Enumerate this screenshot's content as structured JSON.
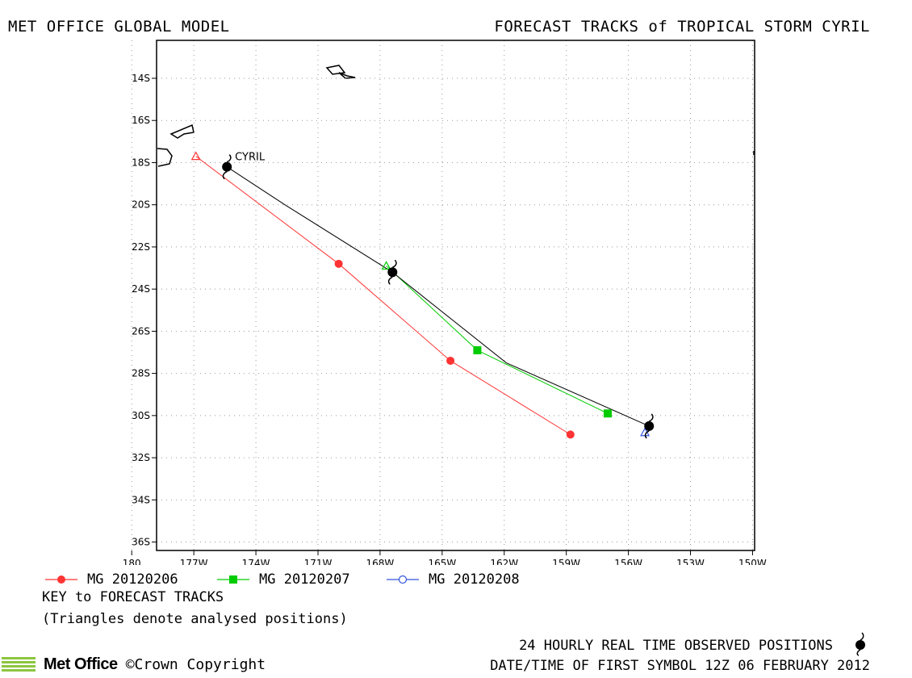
{
  "header": {
    "left": "MET OFFICE GLOBAL MODEL",
    "right": "FORECAST TRACKS of TROPICAL STORM CYRIL"
  },
  "chart_data": {
    "type": "line",
    "title": "FORECAST TRACKS of TROPICAL STORM CYRIL",
    "xlabel": "",
    "ylabel": "",
    "xlim": [
      -178.8,
      -149.9
    ],
    "ylim": [
      -36.4,
      -12.2
    ],
    "x_ticks": [
      {
        "value": -180,
        "label": "180"
      },
      {
        "value": -177,
        "label": "177W"
      },
      {
        "value": -174,
        "label": "174W"
      },
      {
        "value": -171,
        "label": "171W"
      },
      {
        "value": -168,
        "label": "168W"
      },
      {
        "value": -165,
        "label": "165W"
      },
      {
        "value": -162,
        "label": "162W"
      },
      {
        "value": -159,
        "label": "159W"
      },
      {
        "value": -156,
        "label": "156W"
      },
      {
        "value": -153,
        "label": "153W"
      },
      {
        "value": -150,
        "label": "150W"
      }
    ],
    "y_ticks": [
      {
        "value": -14,
        "label": "14S"
      },
      {
        "value": -16,
        "label": "16S"
      },
      {
        "value": -18,
        "label": "18S"
      },
      {
        "value": -20,
        "label": "20S"
      },
      {
        "value": -22,
        "label": "22S"
      },
      {
        "value": -24,
        "label": "24S"
      },
      {
        "value": -26,
        "label": "26S"
      },
      {
        "value": -28,
        "label": "28S"
      },
      {
        "value": -30,
        "label": "30S"
      },
      {
        "value": -32,
        "label": "32S"
      },
      {
        "value": -34,
        "label": "34S"
      },
      {
        "value": -36,
        "label": "36S"
      }
    ],
    "grid": true,
    "storm_label": "CYRIL",
    "series": [
      {
        "name": "MG 20120206",
        "color": "#ff3333",
        "marker": "filled-circle",
        "lon": [
          -176.9,
          -170.0,
          -164.6,
          -158.8
        ],
        "lat": [
          -17.7,
          -22.8,
          -27.4,
          -30.9
        ]
      },
      {
        "name": "MG 20120207",
        "color": "#00cc00",
        "marker": "filled-square",
        "lon": [
          -167.7,
          -163.3,
          -157.0
        ],
        "lat": [
          -22.9,
          -26.9,
          -29.9
        ]
      },
      {
        "name": "MG 20120208",
        "color": "#3355dd",
        "marker": "open-circle",
        "lon": [
          -155.2
        ],
        "lat": [
          -30.8
        ]
      },
      {
        "name": "observed",
        "color": "#000000",
        "marker": "storm-symbol",
        "lon": [
          -175.4,
          -172.6,
          -167.4,
          -161.9,
          -155.0
        ],
        "lat": [
          -18.2,
          -20.0,
          -23.2,
          -27.5,
          -30.5
        ]
      }
    ],
    "analysed_positions": [
      {
        "series": "MG 20120206",
        "lon": -176.9,
        "lat": -17.7
      },
      {
        "series": "MG 20120207",
        "lon": -167.7,
        "lat": -22.9
      },
      {
        "series": "MG 20120208",
        "lon": -155.2,
        "lat": -30.8
      }
    ],
    "observed_symbols": [
      {
        "lon": -175.4,
        "lat": -18.2
      },
      {
        "lon": -167.4,
        "lat": -23.2
      },
      {
        "lon": -155.0,
        "lat": -30.5
      }
    ]
  },
  "legend": {
    "items": [
      {
        "label": "MG 20120206",
        "color": "#ff3333"
      },
      {
        "label": "MG 20120207",
        "color": "#00cc00"
      },
      {
        "label": "MG 20120208",
        "color": "#3355dd"
      }
    ],
    "key_title": "KEY to FORECAST TRACKS",
    "key_note": "(Triangles denote analysed positions)"
  },
  "footer": {
    "observed_label": "24 HOURLY REAL TIME OBSERVED POSITIONS",
    "datetime": "DATE/TIME OF FIRST SYMBOL 12Z 06 FEBRUARY 2012",
    "brand": "Met Office",
    "copyright": "©Crown Copyright",
    "brand_color": "#8cc63f"
  }
}
